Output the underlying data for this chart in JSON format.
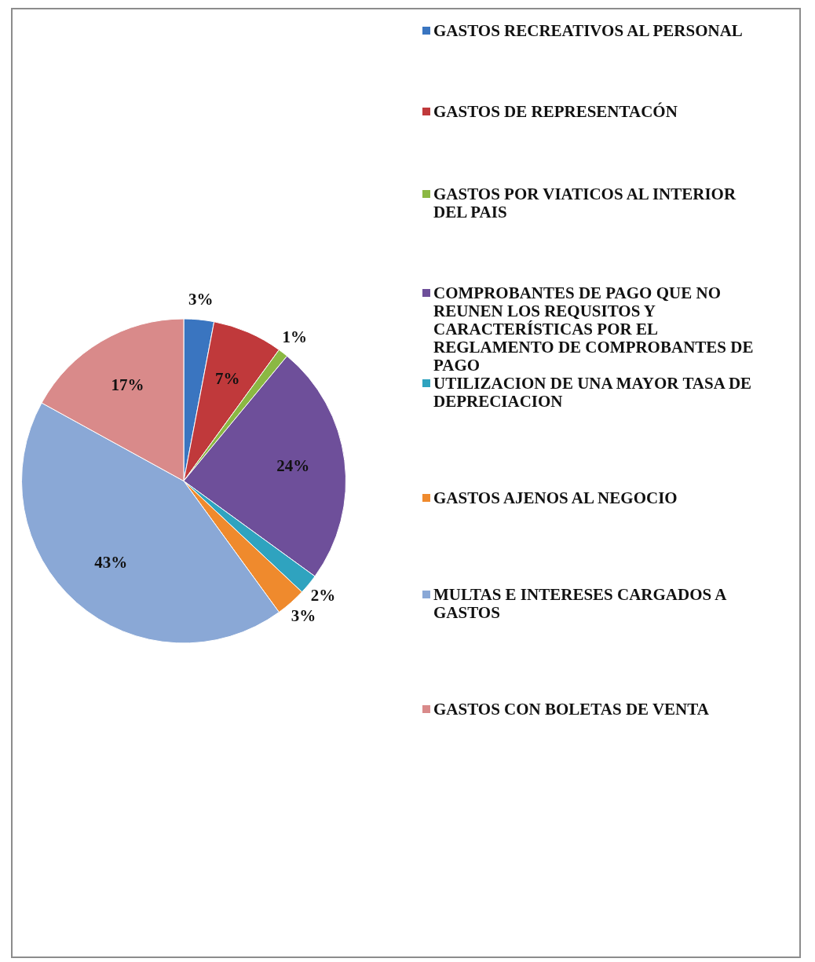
{
  "chart_data": {
    "type": "pie",
    "categories": [
      "GASTOS RECREATIVOS AL PERSONAL",
      "GASTOS DE REPRESENTACÓN",
      "GASTOS POR VIATICOS AL INTERIOR DEL PAIS",
      "COMPROBANTES DE PAGO QUE NO REUNEN LOS REQUSITOS Y CARACTERÍSTICAS POR  EL REGLAMENTO DE COMPROBANTES DE PAGO",
      "UTILIZACION DE UNA MAYOR TASA DE DEPRECIACION",
      "GASTOS AJENOS AL NEGOCIO",
      "MULTAS E INTERESES CARGADOS A GASTOS",
      "GASTOS CON BOLETAS DE VENTA"
    ],
    "values": [
      3,
      7,
      1,
      24,
      2,
      3,
      43,
      17
    ],
    "value_labels": [
      "3%",
      "7%",
      "1%",
      "24%",
      "2%",
      "3%",
      "43%",
      "17%"
    ],
    "colors": [
      "#3a75c0",
      "#c0393b",
      "#8bb843",
      "#6e4f9a",
      "#2fa3bf",
      "#ef8a2d",
      "#8aa8d6",
      "#d98a8a"
    ],
    "legend": "right"
  }
}
